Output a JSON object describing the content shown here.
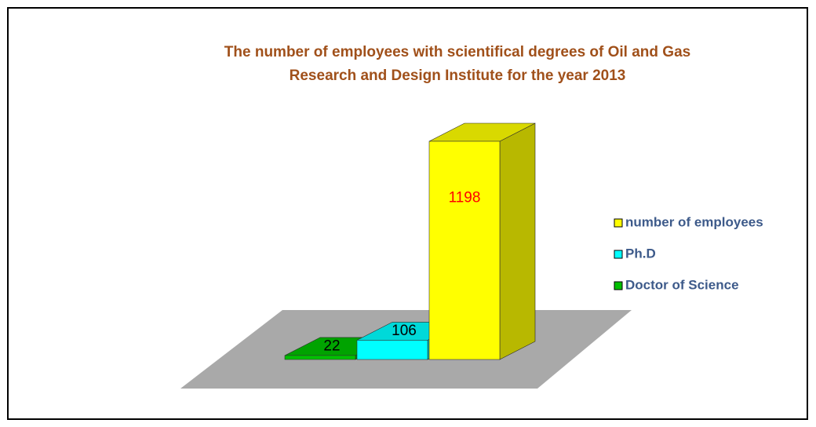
{
  "chart_data": {
    "type": "bar",
    "title": [
      "The number of employees with scientifical degrees of Oil and Gas",
      "Research and Design Institute for the year 2013"
    ],
    "series": [
      {
        "name": "number of employees",
        "color": "#ffff00",
        "label_color": "#ff0000",
        "values": [
          1198
        ]
      },
      {
        "name": "Ph.D",
        "color": "#00ffff",
        "label_color": "#000000",
        "values": [
          106
        ]
      },
      {
        "name": "Doctor of Science",
        "color": "#00c000",
        "label_color": "#000000",
        "values": [
          22
        ]
      }
    ]
  }
}
